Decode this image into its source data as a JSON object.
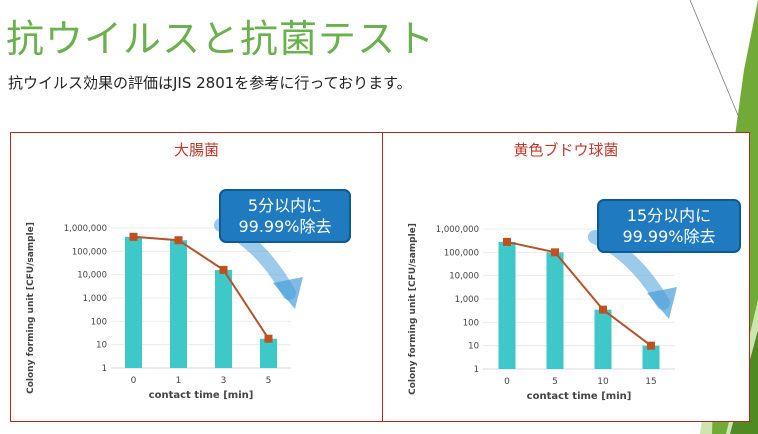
{
  "header": {
    "title": "抗ウイルスと抗菌テスト",
    "subtitle": "抗ウイルス効果の評価はJIS 2801を参考に行っております。"
  },
  "colors": {
    "bar": "#3ec8c8",
    "line": "#b4532a",
    "marker": "#c0501e",
    "panel_border": "#b02a1c",
    "callout": "#1f7ac0",
    "arrow": "#4a9ed8",
    "title": "#6ab04c"
  },
  "chart_data": [
    {
      "type": "bar",
      "title": "大腸菌",
      "xlabel": "contact time [min]",
      "ylabel": "Colony forming unit [CFU/sample]",
      "yscale": "log",
      "ylim": [
        1,
        1000000
      ],
      "yticks": [
        "1",
        "10",
        "100",
        "1,000",
        "10,000",
        "100,000",
        "1,000,000"
      ],
      "categories": [
        "0",
        "1",
        "3",
        "5"
      ],
      "series": [
        {
          "type": "bar",
          "values": [
            420000,
            300000,
            16000,
            18
          ]
        },
        {
          "type": "line",
          "values": [
            420000,
            300000,
            16000,
            18
          ]
        }
      ],
      "annotation": [
        "5分以内に",
        "99.99%除去"
      ]
    },
    {
      "type": "bar",
      "title": "黄色ブドウ球菌",
      "xlabel": "contact time [min]",
      "ylabel": "Colony forming unit [CFU/sample]",
      "yscale": "log",
      "ylim": [
        1,
        1000000
      ],
      "yticks": [
        "1",
        "10",
        "100",
        "1,000",
        "10,000",
        "100,000",
        "1,000,000"
      ],
      "categories": [
        "0",
        "5",
        "10",
        "15"
      ],
      "series": [
        {
          "type": "bar",
          "values": [
            280000,
            100000,
            350,
            10
          ]
        },
        {
          "type": "line",
          "values": [
            280000,
            100000,
            350,
            10
          ]
        }
      ],
      "annotation": [
        "15分以内に",
        "99.99%除去"
      ]
    }
  ]
}
